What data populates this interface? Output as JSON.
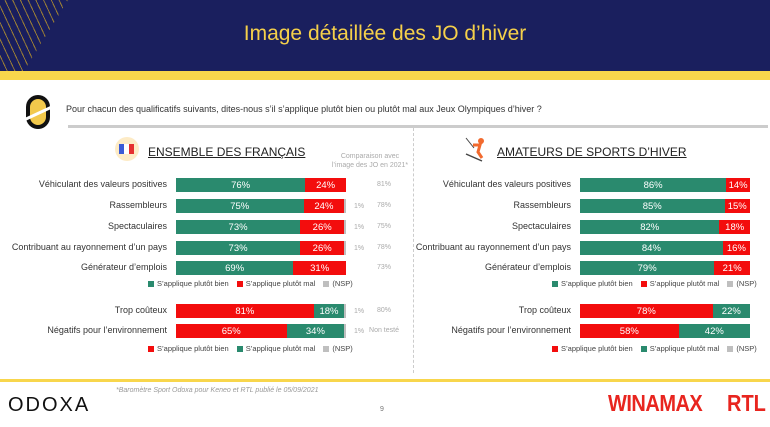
{
  "header": {
    "title": "Image détaillée des JO d’hiver"
  },
  "question": "Pour chacun des qualificatifs suivants, dites-nous s’il s’applique plutôt bien ou plutôt mal aux Jeux Olympiques d’hiver ?",
  "comparison_header": "Comparaison avec l’image des JO en 2021*",
  "colors": {
    "green": "#2a8a6e",
    "red": "#f30d0d",
    "grey": "#bfbfbf",
    "navy": "#1a1f5e",
    "yellow": "#f8d64c"
  },
  "chart_data": [
    {
      "type": "bar",
      "title": "ENSEMBLE DES FRANÇAIS",
      "group1": {
        "categories": [
          "Véhiculant des valeurs positives",
          "Rassembleurs",
          "Spectaculaires",
          "Contribuant au rayonnement d’un pays",
          "Générateur d’emplois"
        ],
        "series": [
          {
            "name": "S’applique plutôt bien",
            "values": [
              76,
              75,
              73,
              73,
              69
            ]
          },
          {
            "name": "S’applique plutôt mal",
            "values": [
              24,
              24,
              26,
              26,
              31
            ]
          },
          {
            "name": "(NSP)",
            "values": [
              0,
              1,
              1,
              1,
              0
            ]
          }
        ],
        "comparison": [
          "81%",
          "78%",
          "75%",
          "78%",
          "73%"
        ]
      },
      "group2": {
        "categories": [
          "Trop coûteux",
          "Négatifs pour l’environnement"
        ],
        "series": [
          {
            "name": "S’applique plutôt bien",
            "values": [
              81,
              65
            ]
          },
          {
            "name": "S’applique plutôt mal",
            "values": [
              18,
              34
            ]
          },
          {
            "name": "(NSP)",
            "values": [
              1,
              1
            ]
          }
        ],
        "comparison": [
          "80%",
          "Non testé"
        ]
      }
    },
    {
      "type": "bar",
      "title": "AMATEURS DE SPORTS D’HIVER",
      "group1": {
        "categories": [
          "Véhiculant des valeurs positives",
          "Rassembleurs",
          "Spectaculaires",
          "Contribuant au rayonnement d’un pays",
          "Générateur d’emplois"
        ],
        "series": [
          {
            "name": "S’applique plutôt bien",
            "values": [
              86,
              85,
              82,
              84,
              79
            ]
          },
          {
            "name": "S’applique plutôt mal",
            "values": [
              14,
              15,
              18,
              16,
              21
            ]
          },
          {
            "name": "(NSP)",
            "values": [
              0,
              0,
              0,
              0,
              0
            ]
          }
        ]
      },
      "group2": {
        "categories": [
          "Trop coûteux",
          "Négatifs pour l’environnement"
        ],
        "series": [
          {
            "name": "S’applique plutôt bien",
            "values": [
              78,
              58
            ]
          },
          {
            "name": "S’applique plutôt mal",
            "values": [
              22,
              42
            ]
          },
          {
            "name": "(NSP)",
            "values": [
              0,
              0
            ]
          }
        ]
      }
    }
  ],
  "footer": {
    "logo": "ODOXA",
    "note": "*Baromètre Sport Odoxa pour Keneo et RTL publié le 05/09/2021",
    "page": "9",
    "partner1": "WINAMAX",
    "partner2": "RTL"
  }
}
